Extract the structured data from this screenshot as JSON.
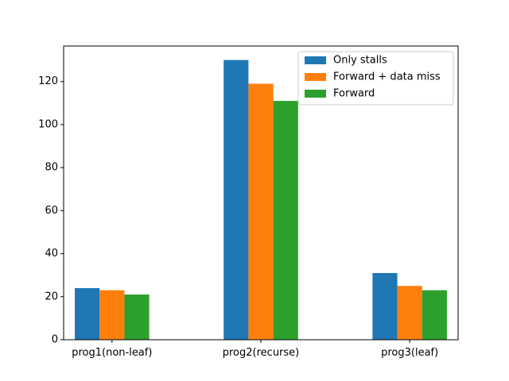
{
  "chart_data": {
    "type": "bar",
    "title": "",
    "xlabel": "",
    "ylabel": "",
    "categories": [
      "prog1(non-leaf)",
      "prog2(recurse)",
      "prog3(leaf)"
    ],
    "series": [
      {
        "name": "Only stalls",
        "values": [
          24,
          130,
          31
        ],
        "color": "#1f77b4"
      },
      {
        "name": "Forward + data miss",
        "values": [
          23,
          119,
          25
        ],
        "color": "#ff7f0e"
      },
      {
        "name": "Forward",
        "values": [
          21,
          111,
          23
        ],
        "color": "#2ca02c"
      }
    ],
    "ylim": [
      0,
      136.5
    ],
    "yticks": [
      0,
      20,
      40,
      60,
      80,
      100,
      120
    ],
    "grid": false,
    "legend_position": "top-right"
  }
}
